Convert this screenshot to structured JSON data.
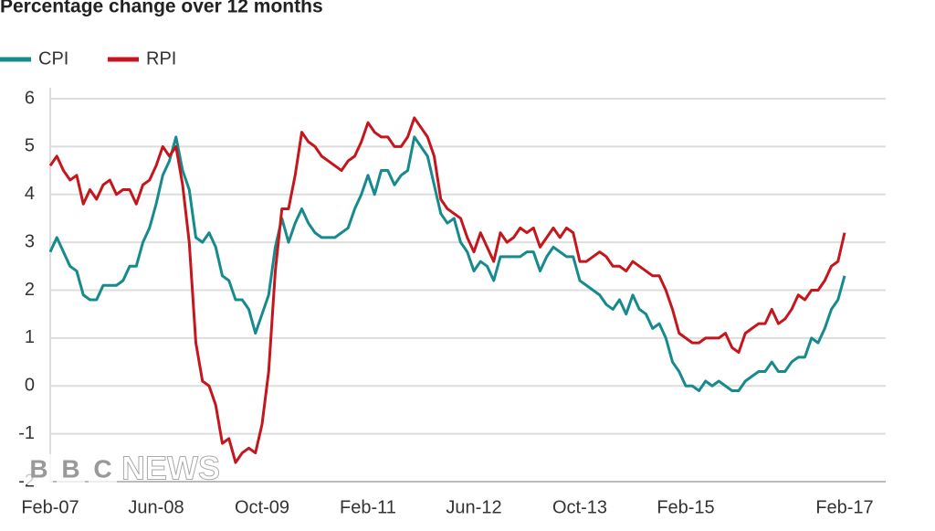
{
  "chart_data": {
    "type": "line",
    "title": "Percentage change over 12 months",
    "categories": [
      "Feb-07",
      null,
      null,
      null,
      null,
      null,
      null,
      null,
      null,
      null,
      null,
      null,
      null,
      null,
      null,
      null,
      "Jun-08",
      null,
      null,
      null,
      null,
      null,
      null,
      null,
      null,
      null,
      null,
      null,
      null,
      null,
      null,
      null,
      "Oct-09",
      null,
      null,
      null,
      null,
      null,
      null,
      null,
      null,
      null,
      null,
      null,
      null,
      null,
      null,
      null,
      "Feb-11",
      null,
      null,
      null,
      null,
      null,
      null,
      null,
      null,
      null,
      null,
      null,
      null,
      null,
      null,
      null,
      "Jun-12",
      null,
      null,
      null,
      null,
      null,
      null,
      null,
      null,
      null,
      null,
      null,
      null,
      null,
      null,
      null,
      "Oct-13",
      null,
      null,
      null,
      null,
      null,
      null,
      null,
      null,
      null,
      null,
      null,
      null,
      null,
      null,
      null,
      "Feb-15",
      null,
      null,
      null,
      null,
      null,
      null,
      null,
      null,
      null,
      null,
      null,
      null,
      null,
      null,
      null,
      null,
      null,
      null,
      null,
      null,
      null,
      null,
      null,
      "Feb-17"
    ],
    "series": [
      {
        "name": "CPI",
        "color": "#168a8c",
        "values": [
          2.8,
          3.1,
          2.8,
          2.5,
          2.4,
          1.9,
          1.8,
          1.8,
          2.1,
          2.1,
          2.1,
          2.2,
          2.5,
          2.5,
          3.0,
          3.3,
          3.8,
          4.4,
          4.7,
          5.2,
          4.5,
          4.1,
          3.1,
          3.0,
          3.2,
          2.9,
          2.3,
          2.2,
          1.8,
          1.8,
          1.6,
          1.1,
          1.5,
          1.9,
          2.9,
          3.5,
          3.0,
          3.4,
          3.7,
          3.4,
          3.2,
          3.1,
          3.1,
          3.1,
          3.2,
          3.3,
          3.7,
          4.0,
          4.4,
          4.0,
          4.5,
          4.5,
          4.2,
          4.4,
          4.5,
          5.2,
          5.0,
          4.8,
          4.2,
          3.6,
          3.4,
          3.5,
          3.0,
          2.8,
          2.4,
          2.6,
          2.5,
          2.2,
          2.7,
          2.7,
          2.7,
          2.7,
          2.8,
          2.8,
          2.4,
          2.7,
          2.9,
          2.8,
          2.7,
          2.7,
          2.2,
          2.1,
          2.0,
          1.9,
          1.7,
          1.6,
          1.8,
          1.5,
          1.9,
          1.6,
          1.5,
          1.2,
          1.3,
          1.0,
          0.5,
          0.3,
          0.0,
          0.0,
          -0.1,
          0.1,
          0.0,
          0.1,
          0.0,
          -0.1,
          -0.1,
          0.1,
          0.2,
          0.3,
          0.3,
          0.5,
          0.3,
          0.3,
          0.5,
          0.6,
          0.6,
          1.0,
          0.9,
          1.2,
          1.6,
          1.8,
          2.3
        ]
      },
      {
        "name": "RPI",
        "color": "#c4161c",
        "values": [
          4.6,
          4.8,
          4.5,
          4.3,
          4.4,
          3.8,
          4.1,
          3.9,
          4.2,
          4.3,
          4.0,
          4.1,
          4.1,
          3.8,
          4.2,
          4.3,
          4.6,
          5.0,
          4.8,
          5.0,
          4.2,
          3.0,
          0.9,
          0.1,
          0.0,
          -0.4,
          -1.2,
          -1.1,
          -1.6,
          -1.4,
          -1.3,
          -1.4,
          -0.8,
          0.3,
          2.4,
          3.7,
          3.7,
          4.4,
          5.3,
          5.1,
          5.0,
          4.8,
          4.7,
          4.6,
          4.5,
          4.7,
          4.8,
          5.1,
          5.5,
          5.3,
          5.2,
          5.2,
          5.0,
          5.0,
          5.2,
          5.6,
          5.4,
          5.2,
          4.8,
          3.9,
          3.7,
          3.6,
          3.5,
          3.1,
          2.8,
          3.2,
          2.9,
          2.6,
          3.2,
          3.0,
          3.1,
          3.3,
          3.2,
          3.3,
          2.9,
          3.1,
          3.3,
          3.1,
          3.3,
          3.2,
          2.6,
          2.6,
          2.7,
          2.8,
          2.7,
          2.5,
          2.5,
          2.4,
          2.6,
          2.5,
          2.4,
          2.3,
          2.3,
          2.0,
          1.6,
          1.1,
          1.0,
          0.9,
          0.9,
          1.0,
          1.0,
          1.0,
          1.1,
          0.8,
          0.7,
          1.1,
          1.2,
          1.3,
          1.3,
          1.6,
          1.3,
          1.4,
          1.6,
          1.9,
          1.8,
          2.0,
          2.0,
          2.2,
          2.5,
          2.6,
          3.2
        ]
      }
    ],
    "ylim": [
      -2,
      6
    ],
    "yticks": [
      -2,
      -1,
      0,
      1,
      2,
      3,
      4,
      5,
      6
    ],
    "grid": true,
    "legend": "top-left",
    "watermark": {
      "letters": [
        "B",
        "B",
        "C"
      ],
      "text": "NEWS"
    }
  }
}
